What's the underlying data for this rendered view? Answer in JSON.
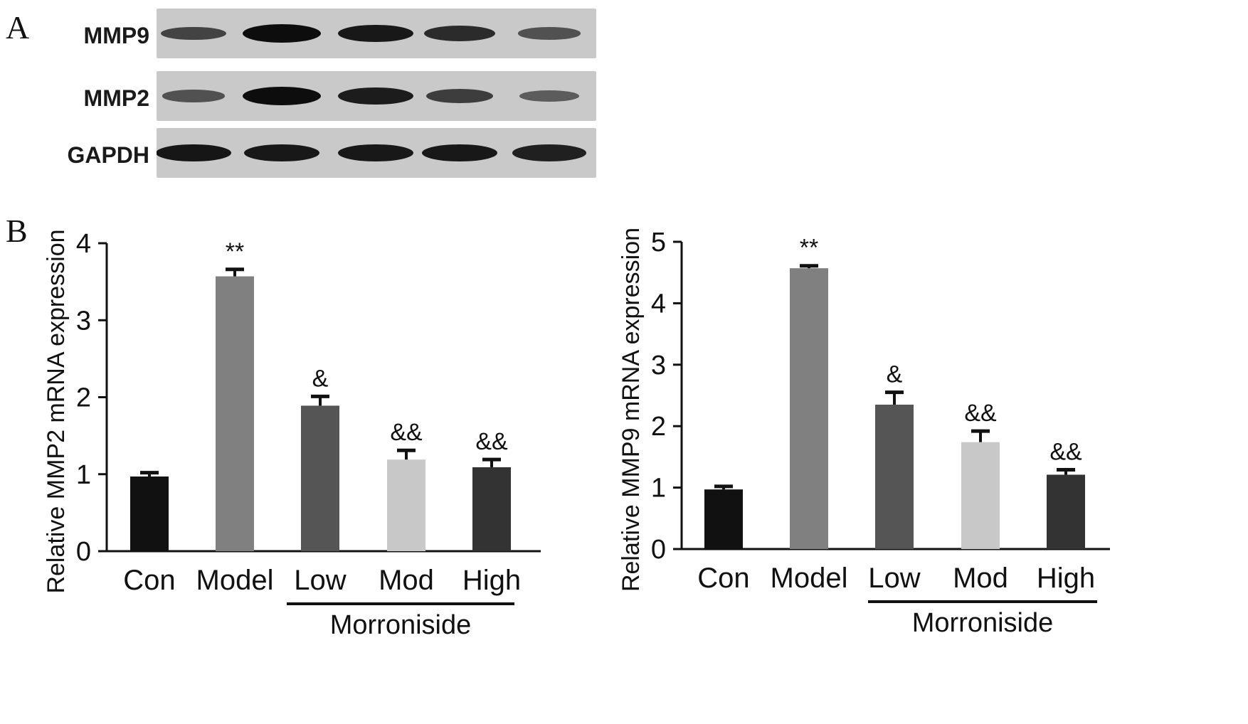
{
  "panels": {
    "a_letter": "A",
    "b_letter": "B"
  },
  "western_blot": {
    "rows": [
      {
        "label": "MMP9",
        "intensities": [
          0.55,
          1.0,
          0.9,
          0.75,
          0.45
        ]
      },
      {
        "label": "MMP2",
        "intensities": [
          0.45,
          1.0,
          0.88,
          0.62,
          0.35
        ]
      },
      {
        "label": "GAPDH",
        "intensities": [
          0.92,
          0.9,
          0.9,
          0.9,
          0.85
        ]
      }
    ]
  },
  "colors": {
    "Con": "#111111",
    "Model": "#808080",
    "Low": "#555555",
    "Mod": "#c8c8c8",
    "High": "#333333",
    "axis": "#111111",
    "blot_background": "#c9c9c9"
  },
  "chart_data": [
    {
      "type": "bar",
      "categories": [
        "Con",
        "Model",
        "Low",
        "Mod",
        "High"
      ],
      "values": [
        0.97,
        3.57,
        1.89,
        1.19,
        1.09
      ],
      "errors": [
        0.05,
        0.09,
        0.12,
        0.12,
        0.1
      ],
      "annotations": [
        "",
        "**",
        "&",
        "&&",
        "&&"
      ],
      "title": "",
      "xlabel": "",
      "ylabel": "Relative MMP2 mRNA expression",
      "ylim": [
        0,
        4
      ],
      "yticks": [
        "0",
        "1",
        "2",
        "3",
        "4"
      ],
      "group_label": "Morroniside",
      "group_covers": [
        "Low",
        "Mod",
        "High"
      ],
      "grid": false,
      "legend": "none"
    },
    {
      "type": "bar",
      "categories": [
        "Con",
        "Model",
        "Low",
        "Mod",
        "High"
      ],
      "values": [
        0.97,
        4.57,
        2.35,
        1.74,
        1.21
      ],
      "errors": [
        0.05,
        0.04,
        0.2,
        0.18,
        0.08
      ],
      "annotations": [
        "",
        "**",
        "&",
        "&&",
        "&&"
      ],
      "title": "",
      "xlabel": "",
      "ylabel": "Relative MMP9 mRNA expression",
      "ylim": [
        0,
        5
      ],
      "yticks": [
        "0",
        "1",
        "2",
        "3",
        "4",
        "5"
      ],
      "group_label": "Morroniside",
      "group_covers": [
        "Low",
        "Mod",
        "High"
      ],
      "grid": false,
      "legend": "none"
    }
  ]
}
